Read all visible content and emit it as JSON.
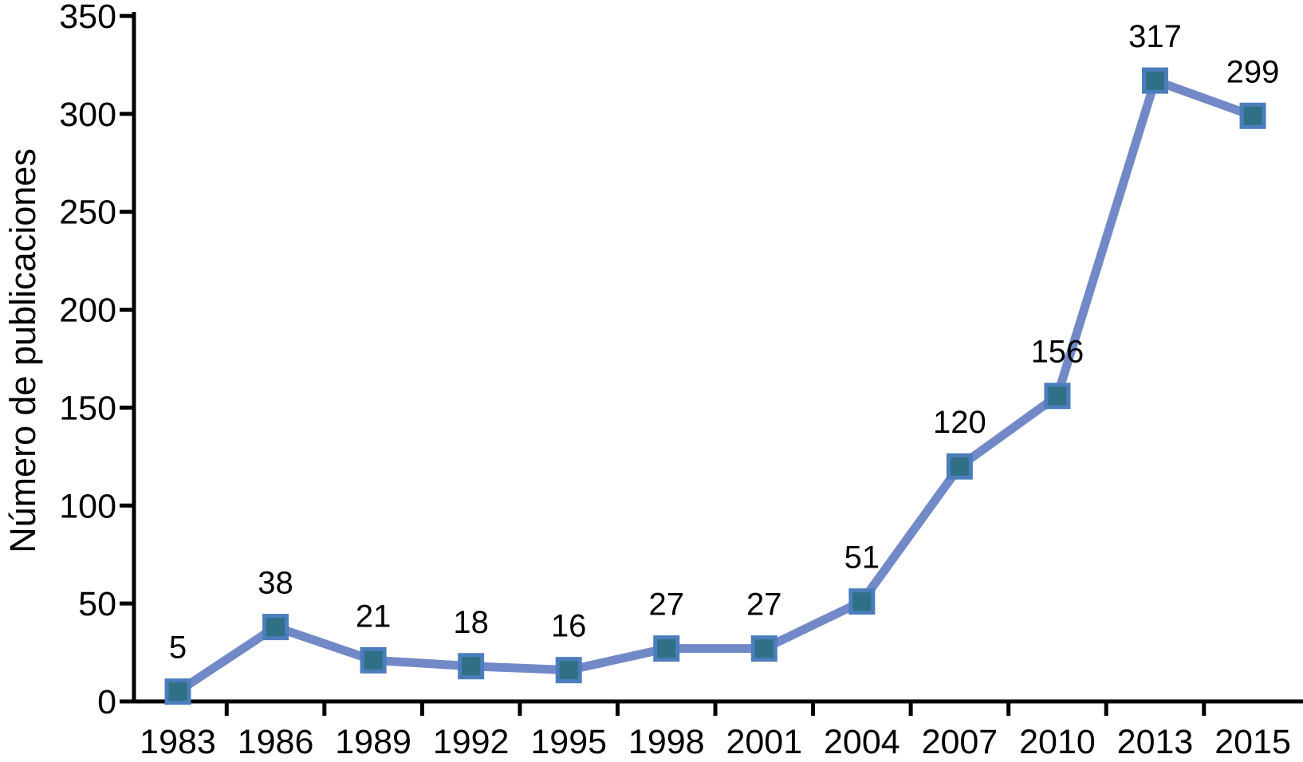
{
  "chart_data": {
    "type": "line",
    "categories": [
      "1983",
      "1986",
      "1989",
      "1992",
      "1995",
      "1998",
      "2001",
      "2004",
      "2007",
      "2010",
      "2013",
      "2015"
    ],
    "series": [
      {
        "name": "Número de publicaciones",
        "values": [
          5,
          38,
          21,
          18,
          16,
          27,
          27,
          51,
          120,
          156,
          317,
          299
        ]
      }
    ],
    "title": "",
    "xlabel": "",
    "ylabel": "Número de publicaciones",
    "ylim": [
      0,
      350
    ],
    "yticks": [
      0,
      50,
      100,
      150,
      200,
      250,
      300,
      350
    ],
    "grid": false,
    "legend": "none",
    "data_labels": true,
    "marker": "square",
    "colors": {
      "line": "#7289C8",
      "marker_fill": "#2F7086",
      "marker_stroke": "#4C7DBC",
      "axis": "#000000",
      "text": "#000000",
      "background": "#FFFFFF"
    }
  }
}
